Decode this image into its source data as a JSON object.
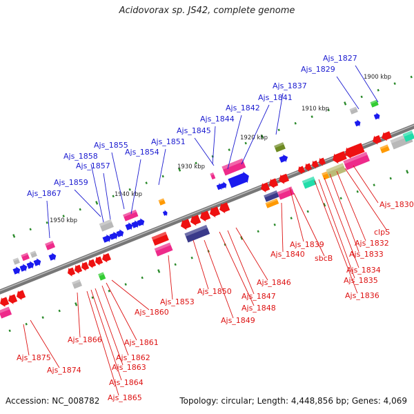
{
  "title": "Acidovorax sp. JS42, complete genome",
  "footer": {
    "accession": "Accession: NC_008782",
    "summary": "Topology: circular; Length: 4,448,856 bp; Genes: 4,069"
  },
  "colors": {
    "backbone": "#777777",
    "forward_label": "#1a1ad0",
    "reverse_label": "#dd1111",
    "tick": "#2a8a2a",
    "gene_red": "#ee1111",
    "gene_pink": "#ee2a8a",
    "gene_blue": "#1a1aee",
    "gene_navy": "#3a3a8a",
    "gene_gray": "#b8b8b8",
    "gene_green": "#33cc33",
    "gene_olive": "#6e8a22",
    "gene_orange": "#ff9900",
    "gene_teal": "#22ddaa",
    "gene_khaki": "#bbbb77"
  },
  "kbp_labels": [
    "1900 kbp",
    "1910 kbp",
    "1920 kbp",
    "1930 kbp",
    "1940 kbp",
    "1950 kbp"
  ],
  "forward_labels": [
    "Ajs_1827",
    "Ajs_1829",
    "Ajs_1837",
    "Ajs_1841",
    "Ajs_1842",
    "Ajs_1844",
    "Ajs_1845",
    "Ajs_1851",
    "Ajs_1854",
    "Ajs_1855",
    "Ajs_1857",
    "Ajs_1858",
    "Ajs_1859",
    "Ajs_1867"
  ],
  "reverse_labels": [
    "Ajs_1830",
    "clpS",
    "Ajs_1832",
    "Ajs_1833",
    "Ajs_1834",
    "Ajs_1835",
    "Ajs_1836",
    "Ajs_1839",
    "sbcB",
    "Ajs_1840",
    "Ajs_1846",
    "Ajs_1847",
    "Ajs_1848",
    "Ajs_1849",
    "Ajs_1850",
    "Ajs_1853",
    "Ajs_1860",
    "Ajs_1861",
    "Ajs_1862",
    "Ajs_1863",
    "Ajs_1864",
    "Ajs_1865",
    "Ajs_1866",
    "Ajs_1874",
    "Ajs_1875"
  ]
}
